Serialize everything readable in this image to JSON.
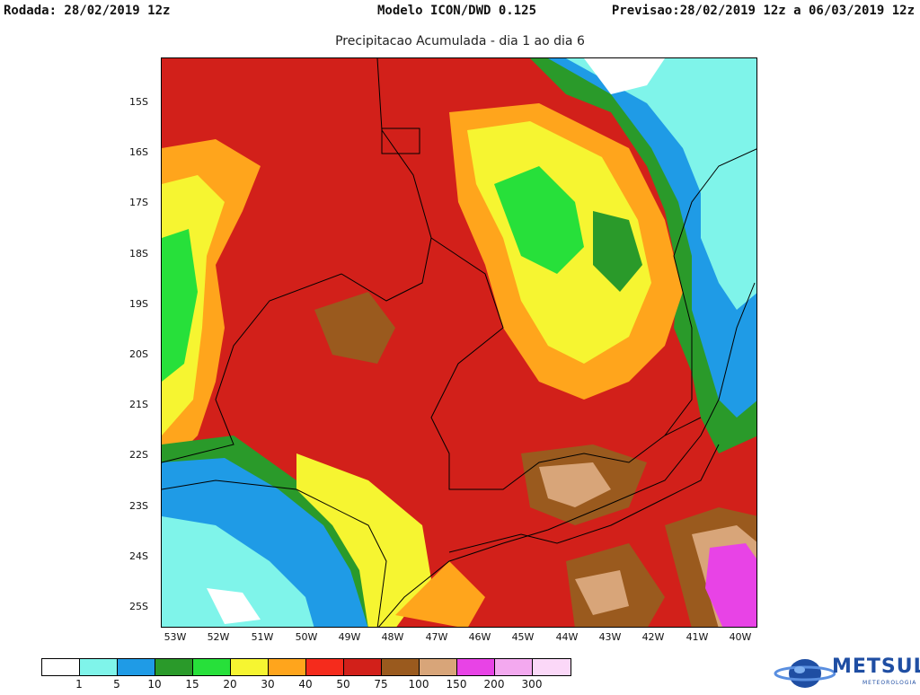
{
  "header": {
    "run": "Rodada: 28/02/2019 12z",
    "model": "Modelo ICON/DWD 0.125",
    "forecast": "Previsao:28/02/2019 12z a 06/03/2019 12z",
    "subtitle": "Precipitacao Acumulada - dia 1 ao dia 6"
  },
  "map": {
    "lat_labels": [
      "15S",
      "16S",
      "17S",
      "18S",
      "19S",
      "20S",
      "21S",
      "22S",
      "23S",
      "24S",
      "25S"
    ],
    "lon_labels": [
      "53W",
      "52W",
      "51W",
      "50W",
      "49W",
      "48W",
      "47W",
      "46W",
      "45W",
      "44W",
      "43W",
      "42W",
      "41W",
      "40W"
    ],
    "colors": {
      "c1": "#ffffff",
      "c5": "#7ff4ea",
      "c10": "#1f9be6",
      "c15": "#2a9a2a",
      "c20": "#27e03a",
      "c30": "#f6f531",
      "c40": "#ffa51c",
      "c50": "#f52b1c",
      "c75": "#d2201a",
      "c100": "#9a5a1e",
      "c150": "#d8a579",
      "c200": "#e843e6",
      "c300": "#f3a9ef"
    }
  },
  "colorbar": {
    "colors": [
      "#ffffff",
      "#7ff4ea",
      "#1f9be6",
      "#2a9a2a",
      "#27e03a",
      "#f6f531",
      "#ffa51c",
      "#f52b1c",
      "#d2201a",
      "#9a5a1e",
      "#d8a579",
      "#e843e6",
      "#f3a9ef",
      "#fbd8f8"
    ],
    "labels": [
      "1",
      "5",
      "10",
      "15",
      "20",
      "30",
      "40",
      "50",
      "75",
      "100",
      "150",
      "200",
      "300"
    ]
  },
  "logo": {
    "name": "METSUL",
    "subtitle": "METEOROLOGIA"
  }
}
